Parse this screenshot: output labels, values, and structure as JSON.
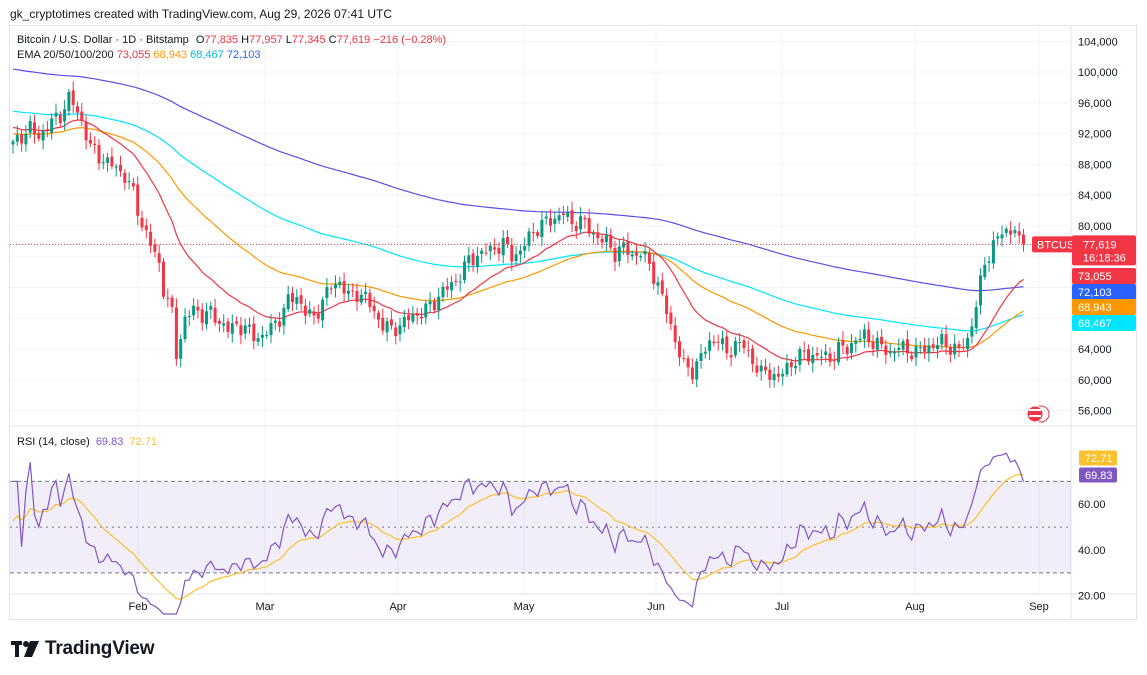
{
  "header": {
    "text": "gk_cryptotimes created with TradingView.com, Aug 29, 2026 07:41 UTC"
  },
  "legend": {
    "symbol": "Bitcoin / U.S. Dollar · 1D · Bitstamp",
    "o_label": "O",
    "o_value": "77,835",
    "h_label": "H",
    "h_value": "77,957",
    "l_label": "L",
    "l_value": "77,345",
    "c_label": "C",
    "c_value": "77,619",
    "change": "−216 (−0.28%)",
    "ema_label": "EMA 20/50/100/200",
    "ema20": "73,055",
    "ema50": "68,943",
    "ema100": "68,467",
    "ema200": "72,103"
  },
  "rsi_legend": {
    "label": "RSI (14, close)",
    "value": "69.83",
    "ma": "72.71"
  },
  "price_tags": {
    "symbol": "BTCUSD",
    "last": "77,619",
    "countdown": "16:18:36",
    "ema20": "73,055",
    "ema200": "72,103",
    "ema50": "68,943",
    "ema100": "68,467",
    "rsi_ma": "72.71",
    "rsi": "69.83"
  },
  "colors": {
    "up": "#089981",
    "down": "#f23645",
    "ema20": "#f23645",
    "ema50": "#ff9800",
    "ema100": "#00e5ff",
    "ema200": "#5b4fe8",
    "rsi": "#7e57c2",
    "rsi_ma": "#fbc02d"
  },
  "logo": {
    "text": "TradingView"
  },
  "chart_data": {
    "type": "candlestick",
    "title": "Bitcoin / U.S. Dollar · 1D · Bitstamp",
    "x_ticks": [
      "Feb",
      "Mar",
      "Apr",
      "May",
      "Jun",
      "Jul",
      "Aug",
      "Sep"
    ],
    "y_ticks": [
      "104,000",
      "100,000",
      "96,000",
      "92,000",
      "88,000",
      "84,000",
      "80,000",
      "76,000",
      "72,000",
      "68,000",
      "64,000",
      "60,000",
      "56,000"
    ],
    "y_range": [
      54000,
      106000
    ],
    "price_path": [
      [
        0,
        90500
      ],
      [
        2,
        91800
      ],
      [
        4,
        92700
      ],
      [
        6,
        91500
      ],
      [
        8,
        93000
      ],
      [
        11,
        94400
      ],
      [
        13,
        96600
      ],
      [
        14,
        95900
      ],
      [
        16,
        93600
      ],
      [
        18,
        90200
      ],
      [
        20,
        89100
      ],
      [
        22,
        88200
      ],
      [
        24,
        87600
      ],
      [
        26,
        86500
      ],
      [
        28,
        84200
      ],
      [
        30,
        80200
      ],
      [
        32,
        77600
      ],
      [
        34,
        75100
      ],
      [
        35,
        71800
      ],
      [
        37,
        68500
      ],
      [
        38,
        63500
      ],
      [
        40,
        67800
      ],
      [
        42,
        69200
      ],
      [
        44,
        68500
      ],
      [
        46,
        68600
      ],
      [
        48,
        67600
      ],
      [
        50,
        66500
      ],
      [
        52,
        67100
      ],
      [
        54,
        66800
      ],
      [
        56,
        65600
      ],
      [
        58,
        65700
      ],
      [
        60,
        66700
      ],
      [
        62,
        68100
      ],
      [
        64,
        70200
      ],
      [
        66,
        70900
      ],
      [
        68,
        68800
      ],
      [
        70,
        68000
      ],
      [
        72,
        70300
      ],
      [
        74,
        72100
      ],
      [
        76,
        72800
      ],
      [
        78,
        70800
      ],
      [
        80,
        71300
      ],
      [
        82,
        70700
      ],
      [
        84,
        68800
      ],
      [
        86,
        67100
      ],
      [
        88,
        66500
      ],
      [
        90,
        67100
      ],
      [
        92,
        68000
      ],
      [
        94,
        68500
      ],
      [
        96,
        69100
      ],
      [
        98,
        70100
      ],
      [
        100,
        71600
      ],
      [
        102,
        72300
      ],
      [
        104,
        73700
      ],
      [
        106,
        75500
      ],
      [
        108,
        76200
      ],
      [
        110,
        76700
      ],
      [
        112,
        77100
      ],
      [
        114,
        77700
      ],
      [
        116,
        76200
      ],
      [
        118,
        76600
      ],
      [
        120,
        78600
      ],
      [
        122,
        79800
      ],
      [
        124,
        80500
      ],
      [
        126,
        81000
      ],
      [
        128,
        81700
      ],
      [
        130,
        80300
      ],
      [
        132,
        80700
      ],
      [
        134,
        79600
      ],
      [
        136,
        78500
      ],
      [
        138,
        77900
      ],
      [
        140,
        76500
      ],
      [
        142,
        77200
      ],
      [
        144,
        76200
      ],
      [
        146,
        76500
      ],
      [
        148,
        75000
      ],
      [
        150,
        72300
      ],
      [
        152,
        68900
      ],
      [
        154,
        65200
      ],
      [
        156,
        61700
      ],
      [
        158,
        61200
      ],
      [
        160,
        63000
      ],
      [
        162,
        64800
      ],
      [
        164,
        65500
      ],
      [
        166,
        63200
      ],
      [
        168,
        64800
      ],
      [
        170,
        64300
      ],
      [
        172,
        62500
      ],
      [
        174,
        60800
      ],
      [
        176,
        61000
      ],
      [
        178,
        60200
      ],
      [
        180,
        61600
      ],
      [
        182,
        62600
      ],
      [
        184,
        63400
      ],
      [
        186,
        63100
      ],
      [
        188,
        63100
      ],
      [
        190,
        62800
      ],
      [
        192,
        64000
      ],
      [
        194,
        64100
      ],
      [
        196,
        65200
      ],
      [
        198,
        65700
      ],
      [
        200,
        65000
      ],
      [
        202,
        64200
      ],
      [
        204,
        63500
      ],
      [
        206,
        64300
      ],
      [
        208,
        63800
      ],
      [
        210,
        63600
      ],
      [
        212,
        64100
      ],
      [
        214,
        64500
      ],
      [
        216,
        64900
      ],
      [
        218,
        64300
      ],
      [
        220,
        63800
      ],
      [
        222,
        65200
      ],
      [
        224,
        69700
      ],
      [
        226,
        75200
      ],
      [
        228,
        77600
      ],
      [
        230,
        79100
      ],
      [
        232,
        79500
      ],
      [
        233,
        79800
      ],
      [
        234,
        77600
      ]
    ],
    "ema20_last": 73055,
    "ema50_last": 68943,
    "ema100_last": 68467,
    "ema200_last": 72103,
    "last_price": 77619,
    "rsi": {
      "period": 14,
      "value": 69.83,
      "ma": 72.71,
      "y_ticks": [
        "60.00",
        "40.00",
        "20.00"
      ],
      "bands": [
        70,
        50,
        30
      ],
      "y_range": [
        12,
        92
      ]
    }
  }
}
